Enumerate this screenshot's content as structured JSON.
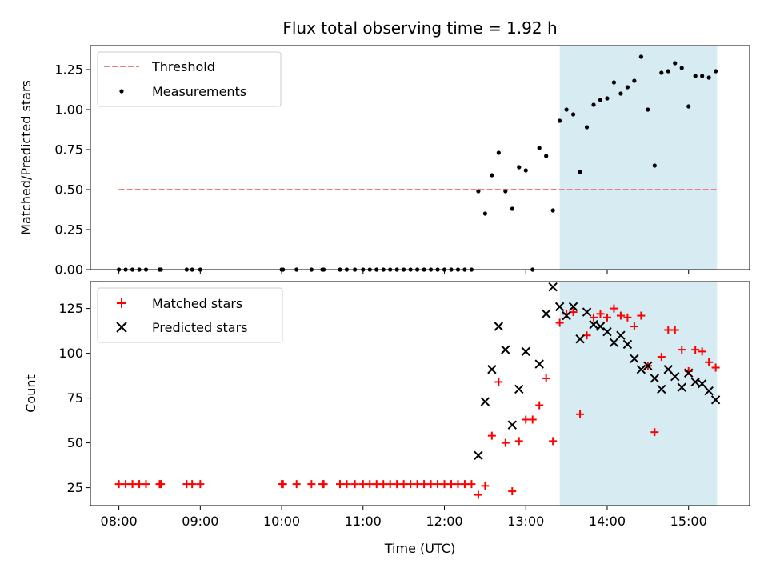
{
  "chart_data": [
    {
      "type": "scatter",
      "title": "Flux total observing time = 1.92 h",
      "xlabel": "",
      "ylabel": "Matched/Predicted stars",
      "ylim": [
        0,
        1.4
      ],
      "yticks": [
        "0.00",
        "0.25",
        "0.50",
        "0.75",
        "1.00",
        "1.25"
      ],
      "ytick_values": [
        0,
        0.25,
        0.5,
        0.75,
        1.0,
        1.25
      ],
      "shaded_region": {
        "x0": 13.4167,
        "x1": 15.35,
        "color": "#add8e6"
      },
      "threshold": {
        "name": "Threshold",
        "y": 0.5,
        "x0": 8.0,
        "x1": 15.35,
        "color": "#f08080"
      },
      "legend": [
        "Threshold",
        "Measurements"
      ],
      "legend_position": "upper-left",
      "series": [
        {
          "name": "Measurements",
          "color": "#000000",
          "points": [
            [
              8.0,
              0
            ],
            [
              8.0833,
              0
            ],
            [
              8.1667,
              0
            ],
            [
              8.25,
              0
            ],
            [
              8.3333,
              0
            ],
            [
              8.5,
              0
            ],
            [
              8.5167,
              0
            ],
            [
              8.8333,
              0
            ],
            [
              8.9,
              0
            ],
            [
              9.0,
              0
            ],
            [
              10.0,
              0
            ],
            [
              10.0167,
              0
            ],
            [
              10.1833,
              0
            ],
            [
              10.3667,
              0
            ],
            [
              10.5,
              0
            ],
            [
              10.5167,
              0
            ],
            [
              10.7167,
              0
            ],
            [
              10.8,
              0
            ],
            [
              10.9,
              0
            ],
            [
              11.0,
              0
            ],
            [
              11.0833,
              0
            ],
            [
              11.1667,
              0
            ],
            [
              11.25,
              0
            ],
            [
              11.3333,
              0
            ],
            [
              11.4167,
              0
            ],
            [
              11.5,
              0
            ],
            [
              11.5833,
              0
            ],
            [
              11.6667,
              0
            ],
            [
              11.75,
              0
            ],
            [
              11.8333,
              0
            ],
            [
              11.9167,
              0
            ],
            [
              12.0,
              0
            ],
            [
              12.0833,
              0
            ],
            [
              12.1667,
              0
            ],
            [
              12.25,
              0
            ],
            [
              12.3333,
              0
            ],
            [
              12.4167,
              0.49
            ],
            [
              12.5,
              0.35
            ],
            [
              12.5833,
              0.59
            ],
            [
              12.6667,
              0.73
            ],
            [
              12.75,
              0.49
            ],
            [
              12.8333,
              0.38
            ],
            [
              12.9167,
              0.64
            ],
            [
              13.0,
              0.62
            ],
            [
              13.0833,
              0
            ],
            [
              13.1667,
              0.76
            ],
            [
              13.25,
              0.71
            ],
            [
              13.3333,
              0.37
            ],
            [
              13.4167,
              0.93
            ],
            [
              13.5,
              1.0
            ],
            [
              13.5833,
              0.97
            ],
            [
              13.6667,
              0.61
            ],
            [
              13.75,
              0.89
            ],
            [
              13.8333,
              1.03
            ],
            [
              13.9167,
              1.06
            ],
            [
              14.0,
              1.07
            ],
            [
              14.0833,
              1.17
            ],
            [
              14.1667,
              1.1
            ],
            [
              14.25,
              1.14
            ],
            [
              14.3333,
              1.18
            ],
            [
              14.4167,
              1.33
            ],
            [
              14.5,
              1.0
            ],
            [
              14.5833,
              0.65
            ],
            [
              14.6667,
              1.23
            ],
            [
              14.75,
              1.24
            ],
            [
              14.8333,
              1.29
            ],
            [
              14.9167,
              1.26
            ],
            [
              15.0,
              1.02
            ],
            [
              15.0833,
              1.21
            ],
            [
              15.1667,
              1.21
            ],
            [
              15.25,
              1.2
            ],
            [
              15.3333,
              1.24
            ]
          ]
        }
      ]
    },
    {
      "type": "scatter",
      "title": "",
      "xlabel": "Time (UTC)",
      "ylabel": "Count",
      "ylim": [
        15,
        140
      ],
      "yticks": [
        "25",
        "50",
        "75",
        "100",
        "125"
      ],
      "ytick_values": [
        25,
        50,
        75,
        100,
        125
      ],
      "xlim": [
        7.65,
        15.75
      ],
      "xticks": [
        "08:00",
        "09:00",
        "10:00",
        "11:00",
        "12:00",
        "13:00",
        "14:00",
        "15:00"
      ],
      "xtick_values": [
        8,
        9,
        10,
        11,
        12,
        13,
        14,
        15
      ],
      "shaded_region": {
        "x0": 13.4167,
        "x1": 15.35,
        "color": "#add8e6"
      },
      "legend": [
        "Matched stars",
        "Predicted stars"
      ],
      "legend_position": "upper-left",
      "series": [
        {
          "name": "Matched stars",
          "marker": "+",
          "color": "#ff0000",
          "points": [
            [
              8.0,
              27
            ],
            [
              8.0833,
              27
            ],
            [
              8.1667,
              27
            ],
            [
              8.25,
              27
            ],
            [
              8.3333,
              27
            ],
            [
              8.5,
              27
            ],
            [
              8.5167,
              27
            ],
            [
              8.8333,
              27
            ],
            [
              8.9,
              27
            ],
            [
              9.0,
              27
            ],
            [
              10.0,
              27
            ],
            [
              10.0167,
              27
            ],
            [
              10.1833,
              27
            ],
            [
              10.3667,
              27
            ],
            [
              10.5,
              27
            ],
            [
              10.5167,
              27
            ],
            [
              10.7167,
              27
            ],
            [
              10.8,
              27
            ],
            [
              10.9,
              27
            ],
            [
              11.0,
              27
            ],
            [
              11.0833,
              27
            ],
            [
              11.1667,
              27
            ],
            [
              11.25,
              27
            ],
            [
              11.3333,
              27
            ],
            [
              11.4167,
              27
            ],
            [
              11.5,
              27
            ],
            [
              11.5833,
              27
            ],
            [
              11.6667,
              27
            ],
            [
              11.75,
              27
            ],
            [
              11.8333,
              27
            ],
            [
              11.9167,
              27
            ],
            [
              12.0,
              27
            ],
            [
              12.0833,
              27
            ],
            [
              12.1667,
              27
            ],
            [
              12.25,
              27
            ],
            [
              12.3333,
              27
            ],
            [
              12.4167,
              21
            ],
            [
              12.5,
              26
            ],
            [
              12.5833,
              54
            ],
            [
              12.6667,
              84
            ],
            [
              12.75,
              50
            ],
            [
              12.8333,
              23
            ],
            [
              12.9167,
              51
            ],
            [
              13.0,
              63
            ],
            [
              13.0833,
              63
            ],
            [
              13.1667,
              71
            ],
            [
              13.25,
              86
            ],
            [
              13.3333,
              51
            ],
            [
              13.4167,
              117
            ],
            [
              13.5,
              122
            ],
            [
              13.5833,
              123
            ],
            [
              13.6667,
              66
            ],
            [
              13.75,
              110
            ],
            [
              13.8333,
              120
            ],
            [
              13.9167,
              122
            ],
            [
              14.0,
              120
            ],
            [
              14.0833,
              125
            ],
            [
              14.1667,
              121
            ],
            [
              14.25,
              120
            ],
            [
              14.3333,
              115
            ],
            [
              14.4167,
              121
            ],
            [
              14.5,
              93
            ],
            [
              14.5833,
              56
            ],
            [
              14.6667,
              98
            ],
            [
              14.75,
              113
            ],
            [
              14.8333,
              113
            ],
            [
              14.9167,
              102
            ],
            [
              15.0,
              90
            ],
            [
              15.0833,
              102
            ],
            [
              15.1667,
              101
            ],
            [
              15.25,
              95
            ],
            [
              15.3333,
              92
            ]
          ]
        },
        {
          "name": "Predicted stars",
          "marker": "x",
          "color": "#000000",
          "points": [
            [
              12.4167,
              43
            ],
            [
              12.5,
              73
            ],
            [
              12.5833,
              91
            ],
            [
              12.6667,
              115
            ],
            [
              12.75,
              102
            ],
            [
              12.8333,
              60
            ],
            [
              12.9167,
              80
            ],
            [
              13.0,
              101
            ],
            [
              13.1667,
              94
            ],
            [
              13.25,
              122
            ],
            [
              13.3333,
              137
            ],
            [
              13.4167,
              126
            ],
            [
              13.5,
              121
            ],
            [
              13.5833,
              126
            ],
            [
              13.6667,
              108
            ],
            [
              13.75,
              123
            ],
            [
              13.8333,
              116
            ],
            [
              13.9167,
              115
            ],
            [
              14.0,
              112
            ],
            [
              14.0833,
              106
            ],
            [
              14.1667,
              110
            ],
            [
              14.25,
              105
            ],
            [
              14.3333,
              97
            ],
            [
              14.4167,
              91
            ],
            [
              14.5,
              93
            ],
            [
              14.5833,
              86
            ],
            [
              14.6667,
              80
            ],
            [
              14.75,
              91
            ],
            [
              14.8333,
              87
            ],
            [
              14.9167,
              81
            ],
            [
              15.0,
              89
            ],
            [
              15.0833,
              84
            ],
            [
              15.1667,
              83
            ],
            [
              15.25,
              79
            ],
            [
              15.3333,
              74
            ]
          ]
        }
      ]
    }
  ]
}
